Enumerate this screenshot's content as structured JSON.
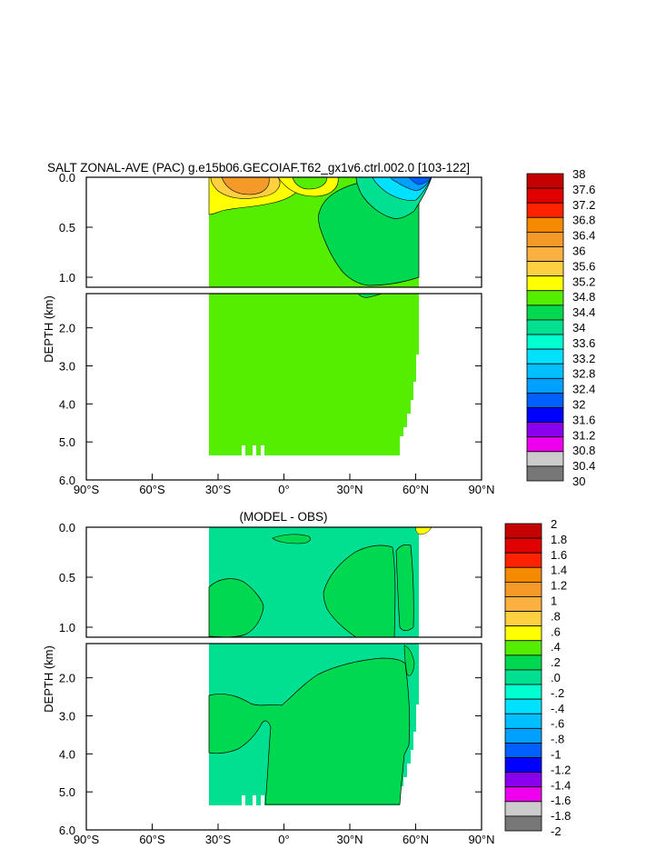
{
  "chart_data": [
    {
      "type": "heatmap",
      "title": "SALT ZONAL-AVE (PAC) g.e15b06.GECOIAF.T62_gx1v6.ctrl.002.0 [103-122]",
      "ylabel": "DEPTH (km)",
      "xlabel": "",
      "x_ticks": [
        "90°S",
        "60°S",
        "30°S",
        "0°",
        "30°N",
        "60°N",
        "90°N"
      ],
      "x_range": [
        -90,
        90
      ],
      "y_range_upper": [
        0.0,
        1.1
      ],
      "y_range_lower": [
        1.1,
        6.0
      ],
      "y_ticks_upper": [
        "0.0",
        "0.5",
        "1.0"
      ],
      "y_ticks_lower": [
        "2.0",
        "3.0",
        "4.0",
        "5.0",
        "6.0"
      ],
      "data_extent": {
        "lat_min": -34,
        "lat_max": 61,
        "max_depth_km": 5.4
      },
      "colorbar_labels": [
        "38",
        "37.6",
        "37.2",
        "36.8",
        "36.4",
        "36",
        "35.6",
        "35.2",
        "34.8",
        "34.4",
        "34",
        "33.6",
        "33.2",
        "32.8",
        "32.4",
        "32",
        "31.6",
        "31.2",
        "30.8",
        "30.4",
        "30"
      ],
      "colors": [
        "#c40000",
        "#e00000",
        "#ff2200",
        "#f58a00",
        "#f59a28",
        "#fbb040",
        "#ffd040",
        "#ffff00",
        "#55ee00",
        "#00d850",
        "#00e090",
        "#00ffd0",
        "#00e0ff",
        "#00bfff",
        "#00a0ff",
        "#0060ff",
        "#0000ff",
        "#8800ee",
        "#ee00ee",
        "#cccccc",
        "#777777"
      ],
      "dominant_value": "34.4–34.8",
      "regions": [
        {
          "range": "35.2–35.6",
          "place": "upper 0.1 km, 34°S–10°S"
        },
        {
          "range": "36–36.4",
          "place": "surface core near 20°S"
        },
        {
          "range": "34–34.4",
          "place": "tongue 10°N–60°N, 0.1–1.0 km"
        },
        {
          "range": "32–34",
          "place": "surface, 40°N–60°N"
        }
      ]
    },
    {
      "type": "heatmap",
      "title": "(MODEL - OBS)",
      "ylabel": "DEPTH (km)",
      "xlabel": "",
      "x_ticks": [
        "90°S",
        "60°S",
        "30°S",
        "0°",
        "30°N",
        "60°N",
        "90°N"
      ],
      "x_range": [
        -90,
        90
      ],
      "y_range_upper": [
        0.0,
        1.1
      ],
      "y_range_lower": [
        1.1,
        6.0
      ],
      "y_ticks_upper": [
        "0.0",
        "0.5",
        "1.0"
      ],
      "y_ticks_lower": [
        "2.0",
        "3.0",
        "4.0",
        "5.0",
        "6.0"
      ],
      "data_extent": {
        "lat_min": -34,
        "lat_max": 61,
        "max_depth_km": 5.4
      },
      "colorbar_labels": [
        "2",
        "1.8",
        "1.6",
        "1.4",
        "1.2",
        "1",
        ".8",
        ".6",
        ".4",
        ".2",
        ".0",
        "-.2",
        "-.4",
        "-.6",
        "-.8",
        "-1",
        "-1.2",
        "-1.4",
        "-1.6",
        "-1.8",
        "-2"
      ],
      "colors": [
        "#c40000",
        "#e00000",
        "#ff2200",
        "#f58a00",
        "#f59a28",
        "#fbb040",
        "#ffd040",
        "#ffff00",
        "#55ee00",
        "#00d850",
        "#00e090",
        "#00ffd0",
        "#00e0ff",
        "#00bfff",
        "#00a0ff",
        "#0060ff",
        "#0000ff",
        "#8800ee",
        "#ee00ee",
        "#cccccc",
        "#777777"
      ],
      "dominant_value": "-.2–.0",
      "regions": [
        {
          "range": ".0–.2",
          "place": "upper 1 km, 34°S–12°S"
        },
        {
          "range": ".0–.2",
          "place": "upper 1 km, 10°N–55°N"
        },
        {
          "range": ".0–.2",
          "place": "deep water 2.2–5.3 km, mostly 30°S–55°N"
        }
      ]
    }
  ]
}
